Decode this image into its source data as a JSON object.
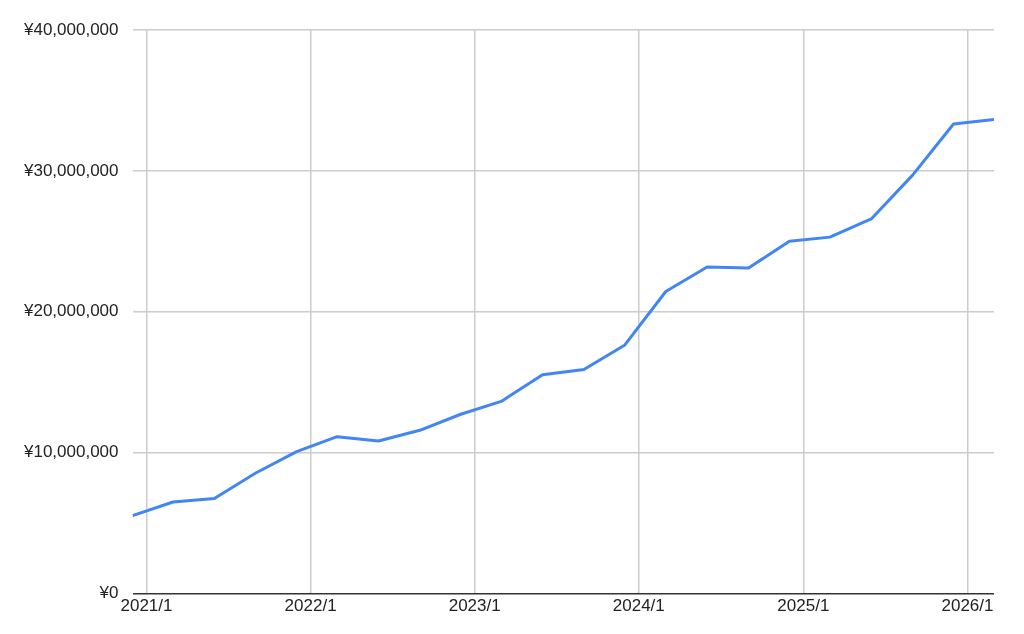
{
  "chart_data": {
    "type": "line",
    "x": [
      "2020-12",
      "2021-03",
      "2021-06",
      "2021-09",
      "2021-12",
      "2022-03",
      "2022-06",
      "2022-09",
      "2022-12",
      "2023-03",
      "2023-06",
      "2023-09",
      "2023-12",
      "2024-03",
      "2024-06",
      "2024-09",
      "2024-12",
      "2025-03",
      "2025-06",
      "2025-09",
      "2025-12",
      "2026-03"
    ],
    "series": [
      {
        "color": "#4285f4",
        "values": [
          5530000,
          6500000,
          6750000,
          8560000,
          10080000,
          11140000,
          10830000,
          11590000,
          12730000,
          13640000,
          15530000,
          15910000,
          17650000,
          21440000,
          23180000,
          23110000,
          25000000,
          25300000,
          26590000,
          29700000,
          33330000,
          33640000
        ]
      }
    ],
    "xlim": [
      "2020-12",
      "2026-03"
    ],
    "xticks": [
      {
        "value": "2021-01",
        "label": "2021/1"
      },
      {
        "value": "2022-01",
        "label": "2022/1"
      },
      {
        "value": "2023-01",
        "label": "2023/1"
      },
      {
        "value": "2024-01",
        "label": "2024/1"
      },
      {
        "value": "2025-01",
        "label": "2025/1"
      },
      {
        "value": "2026-01",
        "label": "2026/1"
      }
    ],
    "ylim": [
      0,
      40000000
    ],
    "yticks": [
      {
        "value": 0,
        "label": "¥0"
      },
      {
        "value": 10000000,
        "label": "¥10,000,000"
      },
      {
        "value": 20000000,
        "label": "¥20,000,000"
      },
      {
        "value": 30000000,
        "label": "¥30,000,000"
      },
      {
        "value": 40000000,
        "label": "¥40,000,000"
      }
    ],
    "grid": true,
    "legend": false,
    "marker": "none",
    "line_style": "solid"
  }
}
